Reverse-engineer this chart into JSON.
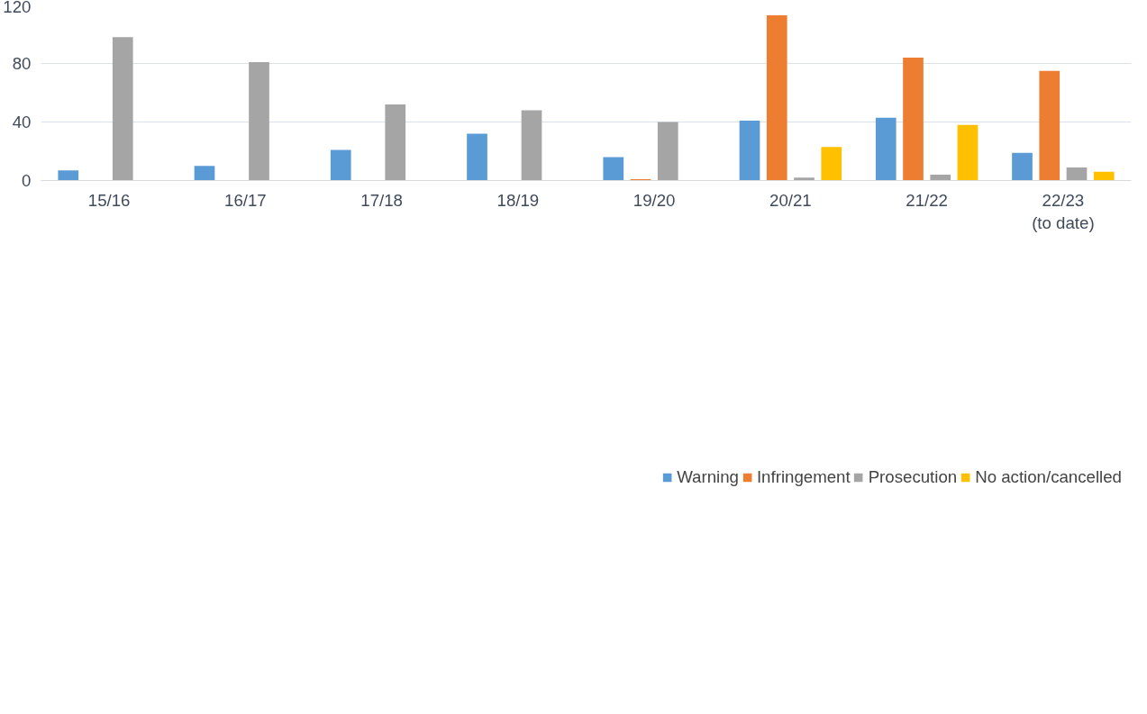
{
  "chart_data": {
    "type": "bar",
    "categories": [
      "15/16",
      "16/17",
      "17/18",
      "18/19",
      "19/20",
      "20/21",
      "21/22",
      "22/23\n(to date)"
    ],
    "series": [
      {
        "name": "Warning",
        "color": "#5b9bd5",
        "values": [
          7,
          10,
          21,
          32,
          16,
          41,
          43,
          19
        ]
      },
      {
        "name": "Infringement",
        "color": "#ed7d31",
        "values": [
          0,
          0,
          0,
          0,
          1,
          113,
          84,
          75
        ]
      },
      {
        "name": "Prosecution",
        "color": "#a5a5a5",
        "values": [
          98,
          81,
          52,
          48,
          40,
          2,
          4,
          9
        ]
      },
      {
        "name": "No action/cancelled",
        "color": "#ffc000",
        "values": [
          0,
          0,
          0,
          0,
          0,
          23,
          38,
          6
        ]
      }
    ],
    "ylim": [
      0,
      120
    ],
    "yticks": [
      0,
      40,
      80,
      120
    ],
    "grid": "y",
    "legend": "bottom"
  }
}
